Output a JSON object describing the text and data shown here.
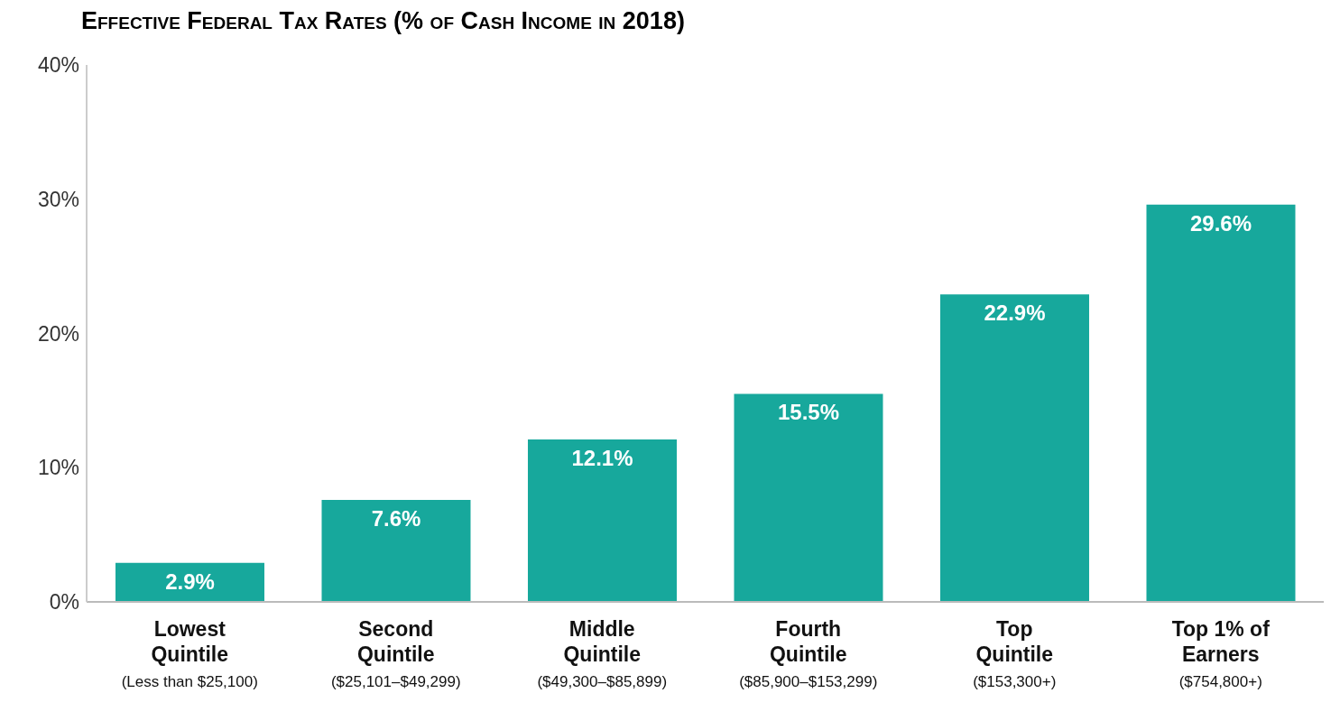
{
  "chart_data": {
    "type": "bar",
    "title": "Effective Federal Tax Rates (% of Cash Income in 2018)",
    "categories": [
      "Lowest\nQuintile\n(Less than $25,100)",
      "Second\nQuintile\n($25,101–$49,299)",
      "Middle\nQuintile\n($49,300–$85,899)",
      "Fourth\nQuintile\n($85,900–$153,299)",
      "Top\nQuintile\n($153,300+)",
      "Top 1% of\nEarners\n($754,800+)"
    ],
    "values": [
      2.9,
      7.6,
      12.1,
      15.5,
      22.9,
      29.6
    ],
    "value_labels": [
      "2.9%",
      "7.6%",
      "12.1%",
      "15.5%",
      "22.9%",
      "29.6%"
    ],
    "color": "#17a89c",
    "ylim": [
      0,
      40
    ],
    "yticks": [
      {
        "value": 0,
        "label": "0%"
      },
      {
        "value": 10,
        "label": "10%"
      },
      {
        "value": 20,
        "label": "20%"
      },
      {
        "value": 30,
        "label": "30%"
      },
      {
        "value": 40,
        "label": "40%"
      }
    ],
    "grid": false,
    "legend": false
  }
}
